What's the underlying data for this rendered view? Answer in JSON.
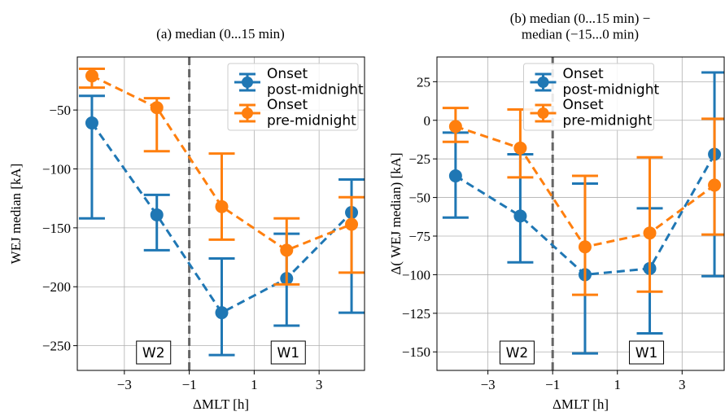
{
  "chart_data": [
    {
      "type": "line",
      "title": "(a) median (0...15 min)",
      "xlabel": "ΔMLT [h]",
      "ylabel": "WEJ median [kA]",
      "x": [
        -4,
        -2,
        0,
        2,
        4
      ],
      "xlim": [
        -4.45,
        4.4
      ],
      "xticks": [
        {
          "value": -3,
          "label": "−3"
        },
        {
          "value": -1,
          "label": "−1"
        },
        1,
        3
      ],
      "ylim": [
        -271,
        -5
      ],
      "yticks": [
        {
          "value": -50,
          "label": "−50"
        },
        {
          "value": -100,
          "label": "−100"
        },
        {
          "value": -150,
          "label": "−150"
        },
        {
          "value": -200,
          "label": "−200"
        },
        {
          "value": -250,
          "label": "−250"
        }
      ],
      "grid": true,
      "legend": "upper right",
      "vline": -1,
      "annotations": [
        {
          "text": "W2",
          "x": -2.1
        },
        {
          "text": "W1",
          "x": 2.05
        }
      ],
      "series": [
        {
          "name": "Onset\npost-midnight",
          "color": "#1f77b4",
          "values": [
            -61,
            -139,
            -222,
            -193,
            -137
          ],
          "upper": [
            -38,
            -122,
            -176,
            -155,
            -109
          ],
          "lower": [
            -142,
            -169,
            -258,
            -233,
            -222
          ]
        },
        {
          "name": "Onset\npre-midnight",
          "color": "#ff7f0e",
          "values": [
            -21,
            -48,
            -132,
            -169,
            -147
          ],
          "upper": [
            -15,
            -40,
            -87,
            -142,
            -124
          ],
          "lower": [
            -31,
            -85,
            -160,
            -198,
            -188
          ]
        }
      ]
    },
    {
      "type": "line",
      "title": "(b) median   (0...15 min) −\nmedian    (−15...0 min)",
      "xlabel": "ΔMLT [h]",
      "ylabel": "Δ( WEJ median) [kA]",
      "x": [
        -4,
        -2,
        0,
        2,
        4
      ],
      "xlim": [
        -4.575,
        4.3
      ],
      "xticks": [
        {
          "value": -3,
          "label": "−3"
        },
        {
          "value": -1,
          "label": "−1"
        },
        1,
        3
      ],
      "ylim": [
        -162,
        41
      ],
      "yticks": [
        25,
        0,
        {
          "value": -25,
          "label": "−25"
        },
        {
          "value": -50,
          "label": "−50"
        },
        {
          "value": -75,
          "label": "−75"
        },
        {
          "value": -100,
          "label": "−100"
        },
        {
          "value": -125,
          "label": "−125"
        },
        {
          "value": -150,
          "label": "−150"
        }
      ],
      "grid": true,
      "legend": "upper center",
      "vline": -1,
      "annotations": [
        {
          "text": "W2",
          "x": -2.1
        },
        {
          "text": "W1",
          "x": 1.9
        }
      ],
      "series": [
        {
          "name": "Onset\npost-midnight",
          "color": "#1f77b4",
          "values": [
            -36,
            -62,
            -100,
            -96,
            -22
          ],
          "upper": [
            -8,
            -22,
            -41,
            -57,
            31
          ],
          "lower": [
            -63,
            -92,
            -151,
            -138,
            -101
          ]
        },
        {
          "name": "Onset\npre-midnight",
          "color": "#ff7f0e",
          "values": [
            -4,
            -18,
            -82,
            -73,
            -42
          ],
          "upper": [
            8,
            7,
            -36,
            -24,
            1
          ],
          "lower": [
            -14,
            -37,
            -113,
            -111,
            -74
          ]
        }
      ]
    }
  ]
}
